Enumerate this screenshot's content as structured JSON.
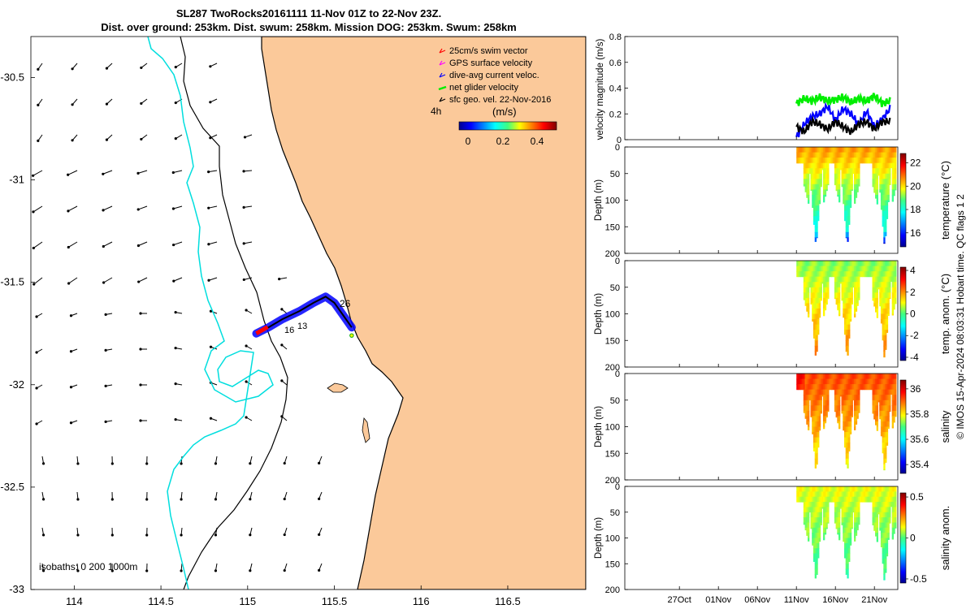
{
  "header": {
    "line1": "SL287 TwoRocks20161111 11-Nov 01Z to 22-Nov 23Z.",
    "line2": "Dist. over ground: 253km. Dist. swum: 258km. Mission DOG: 253km. Swum: 258km"
  },
  "colors": {
    "land": "#fbc99a",
    "coast_iso": "#00e0e0",
    "swim": "#ff0000",
    "gps": "#ff00ff",
    "current": "#0000ff",
    "net": "#00ee00",
    "geo": "#000000"
  },
  "map": {
    "legend": [
      {
        "label": "25cm/s swim vector",
        "color": "#ff0000"
      },
      {
        "label": "GPS surface velocity",
        "color": "#ff00ff"
      },
      {
        "label": "dive-avg current veloc.",
        "color": "#0000ff"
      },
      {
        "label": "net glider velocity",
        "color": "#00ee00"
      },
      {
        "label": "sfc geo. vel. 22-Nov-2016",
        "color": "#000000"
      }
    ],
    "colorbar_title": "(m/s)",
    "colorbar_ticks": [
      "0",
      "0.2",
      "0.4"
    ],
    "time_label": "4h",
    "isobath_label": "isobaths: 0   200  1000m",
    "track_labels": [
      "26",
      "16",
      "13"
    ]
  },
  "side_text": "© IMOS 15-Apr-2024 08:03:31 Hobart time. QC flags 1  2",
  "chart_data": [
    {
      "type": "scatter",
      "name": "glider-track-map",
      "xlim": [
        113.75,
        116.95
      ],
      "ylim": [
        -33,
        -30.3
      ],
      "xticks": [
        "114",
        "114.5",
        "115",
        "115.5",
        "116",
        "116.5"
      ],
      "xtick_values": [
        114,
        114.5,
        115,
        115.5,
        116,
        116.5
      ],
      "yticks": [
        "-30.5",
        "-31",
        "-31.5",
        "-32",
        "-32.5",
        "-33"
      ],
      "ytick_values": [
        -30.5,
        -31,
        -31.5,
        -32,
        -32.5,
        -33
      ],
      "track_lon": [
        115.05,
        115.12,
        115.2,
        115.3,
        115.38,
        115.45,
        115.5,
        115.55,
        115.6
      ],
      "track_lat": [
        -31.75,
        -31.72,
        -31.68,
        -31.64,
        -31.6,
        -31.57,
        -31.6,
        -31.66,
        -31.72
      ]
    },
    {
      "type": "line",
      "name": "velocity-magnitude",
      "ylabel": "velocity magnitude (m/s)",
      "ylim": [
        0,
        0.8
      ],
      "yticks": [
        "0",
        "0.2",
        "0.4",
        "0.6",
        "0.8"
      ],
      "ytick_values": [
        0,
        0.2,
        0.4,
        0.6,
        0.8
      ],
      "xlim_days": [
        -22,
        13
      ],
      "series": [
        {
          "name": "net glider velocity",
          "color": "#00ee00",
          "days": [
            0,
            1,
            2,
            3,
            4,
            5,
            6,
            7,
            8,
            9,
            10,
            11,
            12
          ],
          "values": [
            0.28,
            0.32,
            0.3,
            0.33,
            0.3,
            0.31,
            0.33,
            0.29,
            0.32,
            0.3,
            0.34,
            0.28,
            0.3
          ]
        },
        {
          "name": "dive-avg current veloc.",
          "color": "#0000ff",
          "days": [
            0,
            1,
            2,
            3,
            4,
            5,
            6,
            7,
            8,
            9,
            10,
            11,
            12
          ],
          "values": [
            0.02,
            0.12,
            0.18,
            0.2,
            0.26,
            0.15,
            0.24,
            0.2,
            0.12,
            0.22,
            0.1,
            0.16,
            0.24
          ]
        },
        {
          "name": "sfc geo. vel.",
          "color": "#000000",
          "days": [
            0,
            1,
            2,
            3,
            4,
            5,
            6,
            7,
            8,
            9,
            10,
            11,
            12
          ],
          "values": [
            0.1,
            0.06,
            0.14,
            0.12,
            0.08,
            0.14,
            0.1,
            0.06,
            0.12,
            0.14,
            0.08,
            0.14,
            0.14
          ]
        }
      ]
    },
    {
      "type": "heatmap",
      "name": "temperature",
      "ylabel": "Depth (m)",
      "cbar_label": "temperature (°C)",
      "cbar_ticks": [
        "16",
        "18",
        "20",
        "22"
      ],
      "cbar_tick_values": [
        16,
        18,
        20,
        22
      ],
      "cbar_range": [
        14.8,
        22.8
      ],
      "depth_ticks": [
        "0",
        "50",
        "100",
        "150",
        "200"
      ],
      "depth_range": [
        0,
        200
      ],
      "xlim_days": [
        -22,
        13
      ],
      "days_start": 0,
      "days_end": 12.6,
      "deep_dives_days": [
        2.5,
        6.5,
        11.3
      ],
      "max_depth": 190,
      "shallow_depth": 30,
      "surface_value": 20.5,
      "deep_value": 17.2
    },
    {
      "type": "heatmap",
      "name": "temp-anomaly",
      "ylabel": "Depth (m)",
      "cbar_label": "temp. anom. (°C)",
      "cbar_ticks": [
        "-4",
        "-2",
        "0",
        "2",
        "4"
      ],
      "cbar_tick_values": [
        -4,
        -2,
        0,
        2,
        4
      ],
      "cbar_range": [
        -4.3,
        4.3
      ],
      "depth_ticks": [
        "0",
        "50",
        "100",
        "150",
        "200"
      ],
      "depth_range": [
        0,
        200
      ],
      "xlim_days": [
        -22,
        13
      ],
      "days_start": 0,
      "days_end": 12.6,
      "deep_dives_days": [
        2.5,
        6.5,
        11.3
      ],
      "max_depth": 190,
      "shallow_depth": 30,
      "surface_value": 0.4,
      "deep_value": 2.2
    },
    {
      "type": "heatmap",
      "name": "salinity",
      "ylabel": "Depth (m)",
      "cbar_label": "salinity",
      "cbar_ticks": [
        "35.4",
        "35.6",
        "35.8",
        "36"
      ],
      "cbar_tick_values": [
        35.4,
        35.6,
        35.8,
        36
      ],
      "cbar_range": [
        35.33,
        36.07
      ],
      "depth_ticks": [
        "0",
        "50",
        "100",
        "150",
        "200"
      ],
      "depth_range": [
        0,
        200
      ],
      "xlim_days": [
        -22,
        13
      ],
      "days_start": 0,
      "days_end": 12.6,
      "deep_dives_days": [
        2.5,
        6.5,
        11.3
      ],
      "max_depth": 190,
      "shallow_depth": 30,
      "surface_value": 35.92,
      "deep_value": 35.78
    },
    {
      "type": "heatmap",
      "name": "salinity-anomaly",
      "ylabel": "Depth (m)",
      "cbar_label": "salinity anom.",
      "cbar_ticks": [
        "-0.5",
        "0",
        "0.5"
      ],
      "cbar_tick_values": [
        -0.5,
        0,
        0.5
      ],
      "cbar_range": [
        -0.55,
        0.55
      ],
      "depth_ticks": [
        "0",
        "50",
        "100",
        "150",
        "200"
      ],
      "depth_range": [
        0,
        200
      ],
      "xlim_days": [
        -22,
        13
      ],
      "days_start": 0,
      "days_end": 12.6,
      "deep_dives_days": [
        2.5,
        6.5,
        11.3
      ],
      "max_depth": 190,
      "shallow_depth": 30,
      "surface_value": 0.12,
      "deep_value": -0.05
    }
  ],
  "time_axis": {
    "labels": [
      "27Oct",
      "01Nov",
      "06Nov",
      "11Nov",
      "16Nov",
      "21Nov"
    ],
    "days": [
      -15,
      -10,
      -5,
      0,
      5,
      10
    ]
  }
}
